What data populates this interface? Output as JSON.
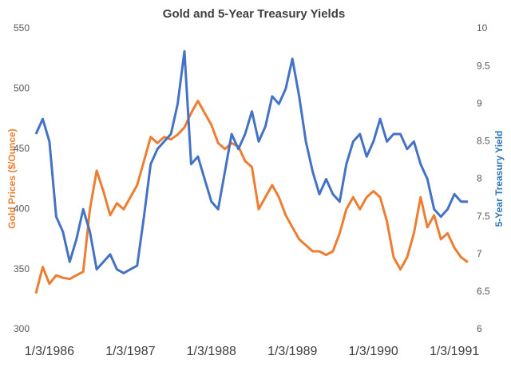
{
  "chart_data": {
    "type": "line",
    "title": "Gold and 5-Year Treasury Yields",
    "y_label": "Gold Prices ($/Ounce)",
    "y2_label": "5-Year Treasury Yield",
    "categories": [
      null,
      null,
      "1/3/1986",
      null,
      null,
      null,
      null,
      null,
      null,
      null,
      null,
      null,
      null,
      null,
      "1/3/1987",
      null,
      null,
      null,
      null,
      null,
      null,
      null,
      null,
      null,
      null,
      null,
      "1/3/1988",
      null,
      null,
      null,
      null,
      null,
      null,
      null,
      null,
      null,
      null,
      null,
      "1/3/1989",
      null,
      null,
      null,
      null,
      null,
      null,
      null,
      null,
      null,
      null,
      null,
      "1/3/1990",
      null,
      null,
      null,
      null,
      null,
      null,
      null,
      null,
      null,
      null,
      null,
      "1/3/1991",
      null,
      null
    ],
    "series": [
      {
        "color": "#ed7d31",
        "axis": "y",
        "values": [
          330,
          352,
          338,
          345,
          343,
          342,
          345,
          348,
          400,
          432,
          415,
          395,
          405,
          400,
          410,
          420,
          440,
          460,
          455,
          460,
          458,
          462,
          468,
          480,
          490,
          480,
          470,
          455,
          450,
          455,
          452,
          440,
          435,
          400,
          410,
          420,
          410,
          395,
          385,
          375,
          370,
          365,
          365,
          362,
          365,
          380,
          400,
          410,
          400,
          410,
          415,
          410,
          390,
          360,
          350,
          360,
          380,
          410,
          385,
          395,
          375,
          380,
          368,
          360,
          356
        ]
      },
      {
        "color": "#4472c4",
        "axis": "y2",
        "values": [
          8.6,
          8.8,
          8.5,
          7.5,
          7.3,
          6.9,
          7.2,
          7.6,
          7.3,
          6.8,
          6.9,
          7.0,
          6.8,
          6.75,
          6.8,
          6.85,
          7.5,
          8.2,
          8.4,
          8.5,
          8.6,
          9.0,
          9.7,
          8.2,
          8.3,
          8.0,
          7.7,
          7.6,
          8.1,
          8.6,
          8.4,
          8.6,
          8.9,
          8.5,
          8.7,
          9.1,
          9.0,
          9.2,
          9.6,
          9.1,
          8.5,
          8.1,
          7.8,
          8.0,
          7.8,
          7.7,
          8.2,
          8.5,
          8.6,
          8.3,
          8.5,
          8.8,
          8.5,
          8.6,
          8.6,
          8.4,
          8.5,
          8.2,
          8.0,
          7.6,
          7.5,
          7.6,
          7.8,
          7.7,
          7.7
        ]
      }
    ],
    "ylim": [
      300,
      550
    ],
    "yticks": [
      300,
      350,
      400,
      450,
      500,
      550
    ],
    "y2lim": [
      6,
      10
    ],
    "y2ticks": [
      6,
      6.5,
      7,
      7.5,
      8,
      8.5,
      9,
      9.5,
      10
    ],
    "grid": false
  }
}
